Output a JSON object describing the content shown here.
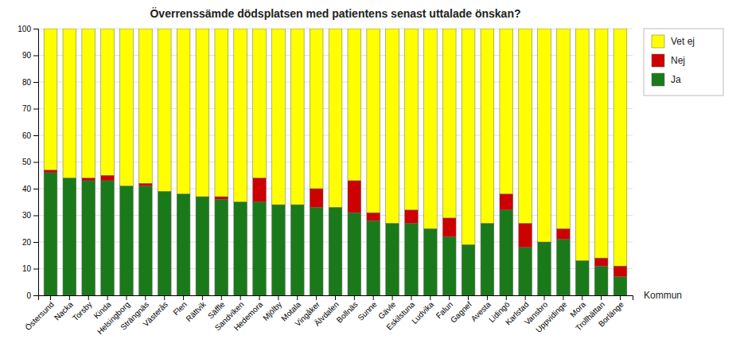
{
  "chart_data": {
    "type": "bar",
    "stacked": true,
    "title": "Överrenssämde dödsplatsen med patientens senast uttalade önskan?",
    "xlabel": "Kommun",
    "categories": [
      "Östersund",
      "Nacka",
      "Torsby",
      "Kinda",
      "Helsingborg",
      "Strängnäs",
      "Västerås",
      "Flen",
      "Rättvik",
      "Säffle",
      "Sandviken",
      "Hedemora",
      "Mjölby",
      "Motala",
      "Vingåker",
      "Älvdalen",
      "Bollnäs",
      "Sunne",
      "Gävle",
      "Eskilstuna",
      "Ludvika",
      "Falun",
      "Gagnef",
      "Avesta",
      "Lidingö",
      "Karlstad",
      "Vansbro",
      "Uppvidinge",
      "Mora",
      "Trollhättan",
      "Borlänge"
    ],
    "series": [
      {
        "name": "Ja",
        "color": "#1a7a1a",
        "values": [
          46,
          44,
          43,
          43,
          41,
          41,
          39,
          38,
          37,
          36,
          35,
          35,
          34,
          34,
          33,
          33,
          31,
          28,
          27,
          27,
          25,
          22,
          19,
          27,
          32,
          18,
          20,
          21,
          13,
          11,
          7
        ]
      },
      {
        "name": "Nej",
        "color": "#cc0000",
        "values": [
          1,
          0,
          1,
          2,
          0,
          1,
          0,
          0,
          0,
          1,
          0,
          9,
          0,
          0,
          7,
          0,
          12,
          3,
          0,
          5,
          0,
          7,
          0,
          0,
          6,
          9,
          0,
          4,
          0,
          3,
          4
        ]
      },
      {
        "name": "Vet ej",
        "color": "#ffff00",
        "values": [
          53,
          56,
          56,
          55,
          59,
          58,
          61,
          62,
          63,
          63,
          65,
          56,
          66,
          66,
          60,
          67,
          57,
          69,
          73,
          68,
          75,
          71,
          81,
          73,
          62,
          73,
          80,
          75,
          87,
          86,
          89
        ]
      }
    ],
    "ylim": [
      0,
      100
    ],
    "yticks": [
      0,
      10,
      20,
      30,
      40,
      50,
      60,
      70,
      80,
      90,
      100
    ],
    "grid": true,
    "legend": "right"
  }
}
